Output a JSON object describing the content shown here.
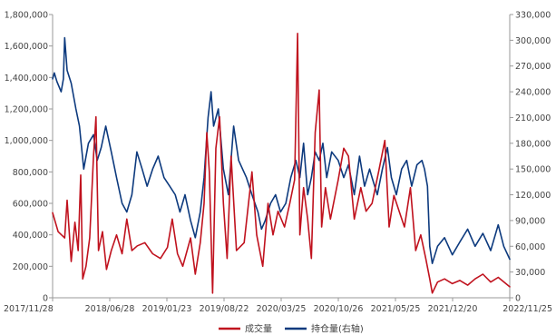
{
  "chart_data": {
    "type": "line",
    "title": "",
    "x_tick_labels": [
      "2017/11/28",
      "2018/06/28",
      "2019/01/23",
      "2019/08/22",
      "2020/03/25",
      "2020/10/26",
      "2021/05/25",
      "2021/12/20",
      "2022/11/25"
    ],
    "x_range": [
      "2017/11/28",
      "2022/11/25"
    ],
    "y_left": {
      "ylim": [
        0,
        1800000
      ],
      "tick_labels": [
        "0",
        "200,000",
        "400,000",
        "600,000",
        "800,000",
        "1,000,000",
        "1,200,000",
        "1,400,000",
        "1,600,000",
        "1,800,000"
      ]
    },
    "y_right": {
      "ylim": [
        0,
        330000
      ],
      "tick_labels": [
        "0",
        "30,000",
        "60,000",
        "90,000",
        "120,000",
        "150,000",
        "180,000",
        "210,000",
        "240,000",
        "270,000",
        "300,000",
        "330,000"
      ]
    },
    "grid": false,
    "legend_position": "bottom",
    "series": [
      {
        "name": "成交量",
        "axis": "left",
        "color": "#C0121E",
        "points": [
          [
            "2017/11/28",
            540000
          ],
          [
            "2017/12/20",
            420000
          ],
          [
            "2018/01/15",
            380000
          ],
          [
            "2018/01/25",
            620000
          ],
          [
            "2018/02/10",
            230000
          ],
          [
            "2018/02/25",
            480000
          ],
          [
            "2018/03/10",
            300000
          ],
          [
            "2018/03/20",
            780000
          ],
          [
            "2018/03/28",
            120000
          ],
          [
            "2018/04/10",
            200000
          ],
          [
            "2018/04/25",
            380000
          ],
          [
            "2018/05/10",
            900000
          ],
          [
            "2018/05/20",
            1150000
          ],
          [
            "2018/05/30",
            300000
          ],
          [
            "2018/06/15",
            420000
          ],
          [
            "2018/07/01",
            180000
          ],
          [
            "2018/07/20",
            300000
          ],
          [
            "2018/08/10",
            400000
          ],
          [
            "2018/09/01",
            280000
          ],
          [
            "2018/09/20",
            500000
          ],
          [
            "2018/10/10",
            300000
          ],
          [
            "2018/11/01",
            330000
          ],
          [
            "2018/12/01",
            350000
          ],
          [
            "2019/01/01",
            280000
          ],
          [
            "2019/02/01",
            250000
          ],
          [
            "2019/03/01",
            320000
          ],
          [
            "2019/03/20",
            500000
          ],
          [
            "2019/04/10",
            280000
          ],
          [
            "2019/05/01",
            200000
          ],
          [
            "2019/06/01",
            380000
          ],
          [
            "2019/06/20",
            150000
          ],
          [
            "2019/07/10",
            350000
          ],
          [
            "2019/07/25",
            600000
          ],
          [
            "2019/08/05",
            1050000
          ],
          [
            "2019/08/15",
            800000
          ],
          [
            "2019/08/28",
            30000
          ],
          [
            "2019/09/10",
            950000
          ],
          [
            "2019/09/25",
            1150000
          ],
          [
            "2019/10/10",
            600000
          ],
          [
            "2019/10/25",
            250000
          ],
          [
            "2019/11/10",
            900000
          ],
          [
            "2019/12/01",
            300000
          ],
          [
            "2020/01/01",
            350000
          ],
          [
            "2020/02/01",
            800000
          ],
          [
            "2020/02/20",
            400000
          ],
          [
            "2020/03/15",
            200000
          ],
          [
            "2020/04/05",
            600000
          ],
          [
            "2020/04/25",
            400000
          ],
          [
            "2020/05/15",
            550000
          ],
          [
            "2020/06/10",
            450000
          ],
          [
            "2020/07/01",
            600000
          ],
          [
            "2020/07/20",
            750000
          ],
          [
            "2020/08/01",
            1680000
          ],
          [
            "2020/08/10",
            400000
          ],
          [
            "2020/08/25",
            700000
          ],
          [
            "2020/09/10",
            500000
          ],
          [
            "2020/09/25",
            250000
          ],
          [
            "2020/10/10",
            1050000
          ],
          [
            "2020/10/26",
            1320000
          ],
          [
            "2020/11/05",
            450000
          ],
          [
            "2020/11/20",
            700000
          ],
          [
            "2020/12/10",
            500000
          ],
          [
            "2021/01/10",
            750000
          ],
          [
            "2021/02/01",
            950000
          ],
          [
            "2021/02/20",
            900000
          ],
          [
            "2021/03/15",
            500000
          ],
          [
            "2021/04/10",
            700000
          ],
          [
            "2021/05/01",
            550000
          ],
          [
            "2021/05/25",
            600000
          ],
          [
            "2021/06/20",
            800000
          ],
          [
            "2021/07/15",
            1000000
          ],
          [
            "2021/08/01",
            450000
          ],
          [
            "2021/08/20",
            650000
          ],
          [
            "2021/09/10",
            550000
          ],
          [
            "2021/10/01",
            450000
          ],
          [
            "2021/10/25",
            700000
          ],
          [
            "2021/11/15",
            300000
          ],
          [
            "2021/12/05",
            400000
          ],
          [
            "2021/12/25",
            250000
          ],
          [
            "2022/01/10",
            120000
          ],
          [
            "2022/01/20",
            30000
          ],
          [
            "2022/02/10",
            100000
          ],
          [
            "2022/03/10",
            120000
          ],
          [
            "2022/04/10",
            90000
          ],
          [
            "2022/05/10",
            110000
          ],
          [
            "2022/06/10",
            80000
          ],
          [
            "2022/07/10",
            120000
          ],
          [
            "2022/08/10",
            150000
          ],
          [
            "2022/09/10",
            100000
          ],
          [
            "2022/10/10",
            130000
          ],
          [
            "2022/11/25",
            70000
          ]
        ]
      },
      {
        "name": "持仓量(右轴)",
        "axis": "right",
        "color": "#0D3A7E",
        "points": [
          [
            "2017/11/28",
            255000
          ],
          [
            "2017/12/05",
            262000
          ],
          [
            "2017/12/15",
            252000
          ],
          [
            "2018/01/01",
            240000
          ],
          [
            "2018/01/10",
            255000
          ],
          [
            "2018/01/15",
            303000
          ],
          [
            "2018/01/25",
            265000
          ],
          [
            "2018/02/10",
            250000
          ],
          [
            "2018/03/01",
            220000
          ],
          [
            "2018/03/15",
            200000
          ],
          [
            "2018/04/01",
            150000
          ],
          [
            "2018/04/20",
            180000
          ],
          [
            "2018/05/10",
            190000
          ],
          [
            "2018/05/25",
            160000
          ],
          [
            "2018/06/10",
            175000
          ],
          [
            "2018/06/28",
            200000
          ],
          [
            "2018/07/20",
            170000
          ],
          [
            "2018/08/10",
            140000
          ],
          [
            "2018/09/01",
            110000
          ],
          [
            "2018/09/20",
            100000
          ],
          [
            "2018/10/10",
            120000
          ],
          [
            "2018/10/30",
            170000
          ],
          [
            "2018/11/20",
            150000
          ],
          [
            "2018/12/10",
            130000
          ],
          [
            "2019/01/01",
            150000
          ],
          [
            "2019/01/23",
            165000
          ],
          [
            "2019/02/15",
            140000
          ],
          [
            "2019/03/10",
            130000
          ],
          [
            "2019/04/01",
            120000
          ],
          [
            "2019/04/20",
            100000
          ],
          [
            "2019/05/10",
            120000
          ],
          [
            "2019/06/01",
            90000
          ],
          [
            "2019/06/20",
            70000
          ],
          [
            "2019/07/10",
            100000
          ],
          [
            "2019/07/25",
            140000
          ],
          [
            "2019/08/10",
            210000
          ],
          [
            "2019/08/22",
            240000
          ],
          [
            "2019/09/01",
            200000
          ],
          [
            "2019/09/20",
            220000
          ],
          [
            "2019/10/10",
            150000
          ],
          [
            "2019/10/30",
            120000
          ],
          [
            "2019/11/20",
            200000
          ],
          [
            "2019/12/10",
            160000
          ],
          [
            "2020/01/10",
            140000
          ],
          [
            "2020/02/01",
            120000
          ],
          [
            "2020/02/25",
            100000
          ],
          [
            "2020/03/10",
            80000
          ],
          [
            "2020/03/25",
            90000
          ],
          [
            "2020/04/15",
            110000
          ],
          [
            "2020/05/05",
            120000
          ],
          [
            "2020/05/25",
            100000
          ],
          [
            "2020/06/15",
            110000
          ],
          [
            "2020/07/05",
            140000
          ],
          [
            "2020/07/25",
            160000
          ],
          [
            "2020/08/10",
            140000
          ],
          [
            "2020/08/25",
            180000
          ],
          [
            "2020/09/10",
            120000
          ],
          [
            "2020/09/25",
            140000
          ],
          [
            "2020/10/10",
            170000
          ],
          [
            "2020/10/26",
            160000
          ],
          [
            "2020/11/10",
            180000
          ],
          [
            "2020/11/25",
            140000
          ],
          [
            "2020/12/15",
            170000
          ],
          [
            "2021/01/10",
            160000
          ],
          [
            "2021/02/01",
            140000
          ],
          [
            "2021/02/20",
            155000
          ],
          [
            "2021/03/15",
            120000
          ],
          [
            "2021/04/05",
            165000
          ],
          [
            "2021/04/25",
            130000
          ],
          [
            "2021/05/15",
            150000
          ],
          [
            "2021/05/25",
            140000
          ],
          [
            "2021/06/15",
            120000
          ],
          [
            "2021/07/05",
            150000
          ],
          [
            "2021/07/25",
            175000
          ],
          [
            "2021/08/10",
            140000
          ],
          [
            "2021/08/30",
            120000
          ],
          [
            "2021/09/20",
            150000
          ],
          [
            "2021/10/10",
            160000
          ],
          [
            "2021/10/30",
            130000
          ],
          [
            "2021/11/20",
            155000
          ],
          [
            "2021/12/10",
            160000
          ],
          [
            "2021/12/20",
            150000
          ],
          [
            "2022/01/01",
            130000
          ],
          [
            "2022/01/10",
            60000
          ],
          [
            "2022/01/20",
            40000
          ],
          [
            "2022/02/10",
            60000
          ],
          [
            "2022/03/10",
            70000
          ],
          [
            "2022/04/10",
            50000
          ],
          [
            "2022/05/10",
            65000
          ],
          [
            "2022/06/10",
            80000
          ],
          [
            "2022/07/10",
            60000
          ],
          [
            "2022/08/10",
            75000
          ],
          [
            "2022/09/10",
            55000
          ],
          [
            "2022/10/10",
            85000
          ],
          [
            "2022/11/01",
            60000
          ],
          [
            "2022/11/25",
            45000
          ]
        ]
      }
    ]
  }
}
